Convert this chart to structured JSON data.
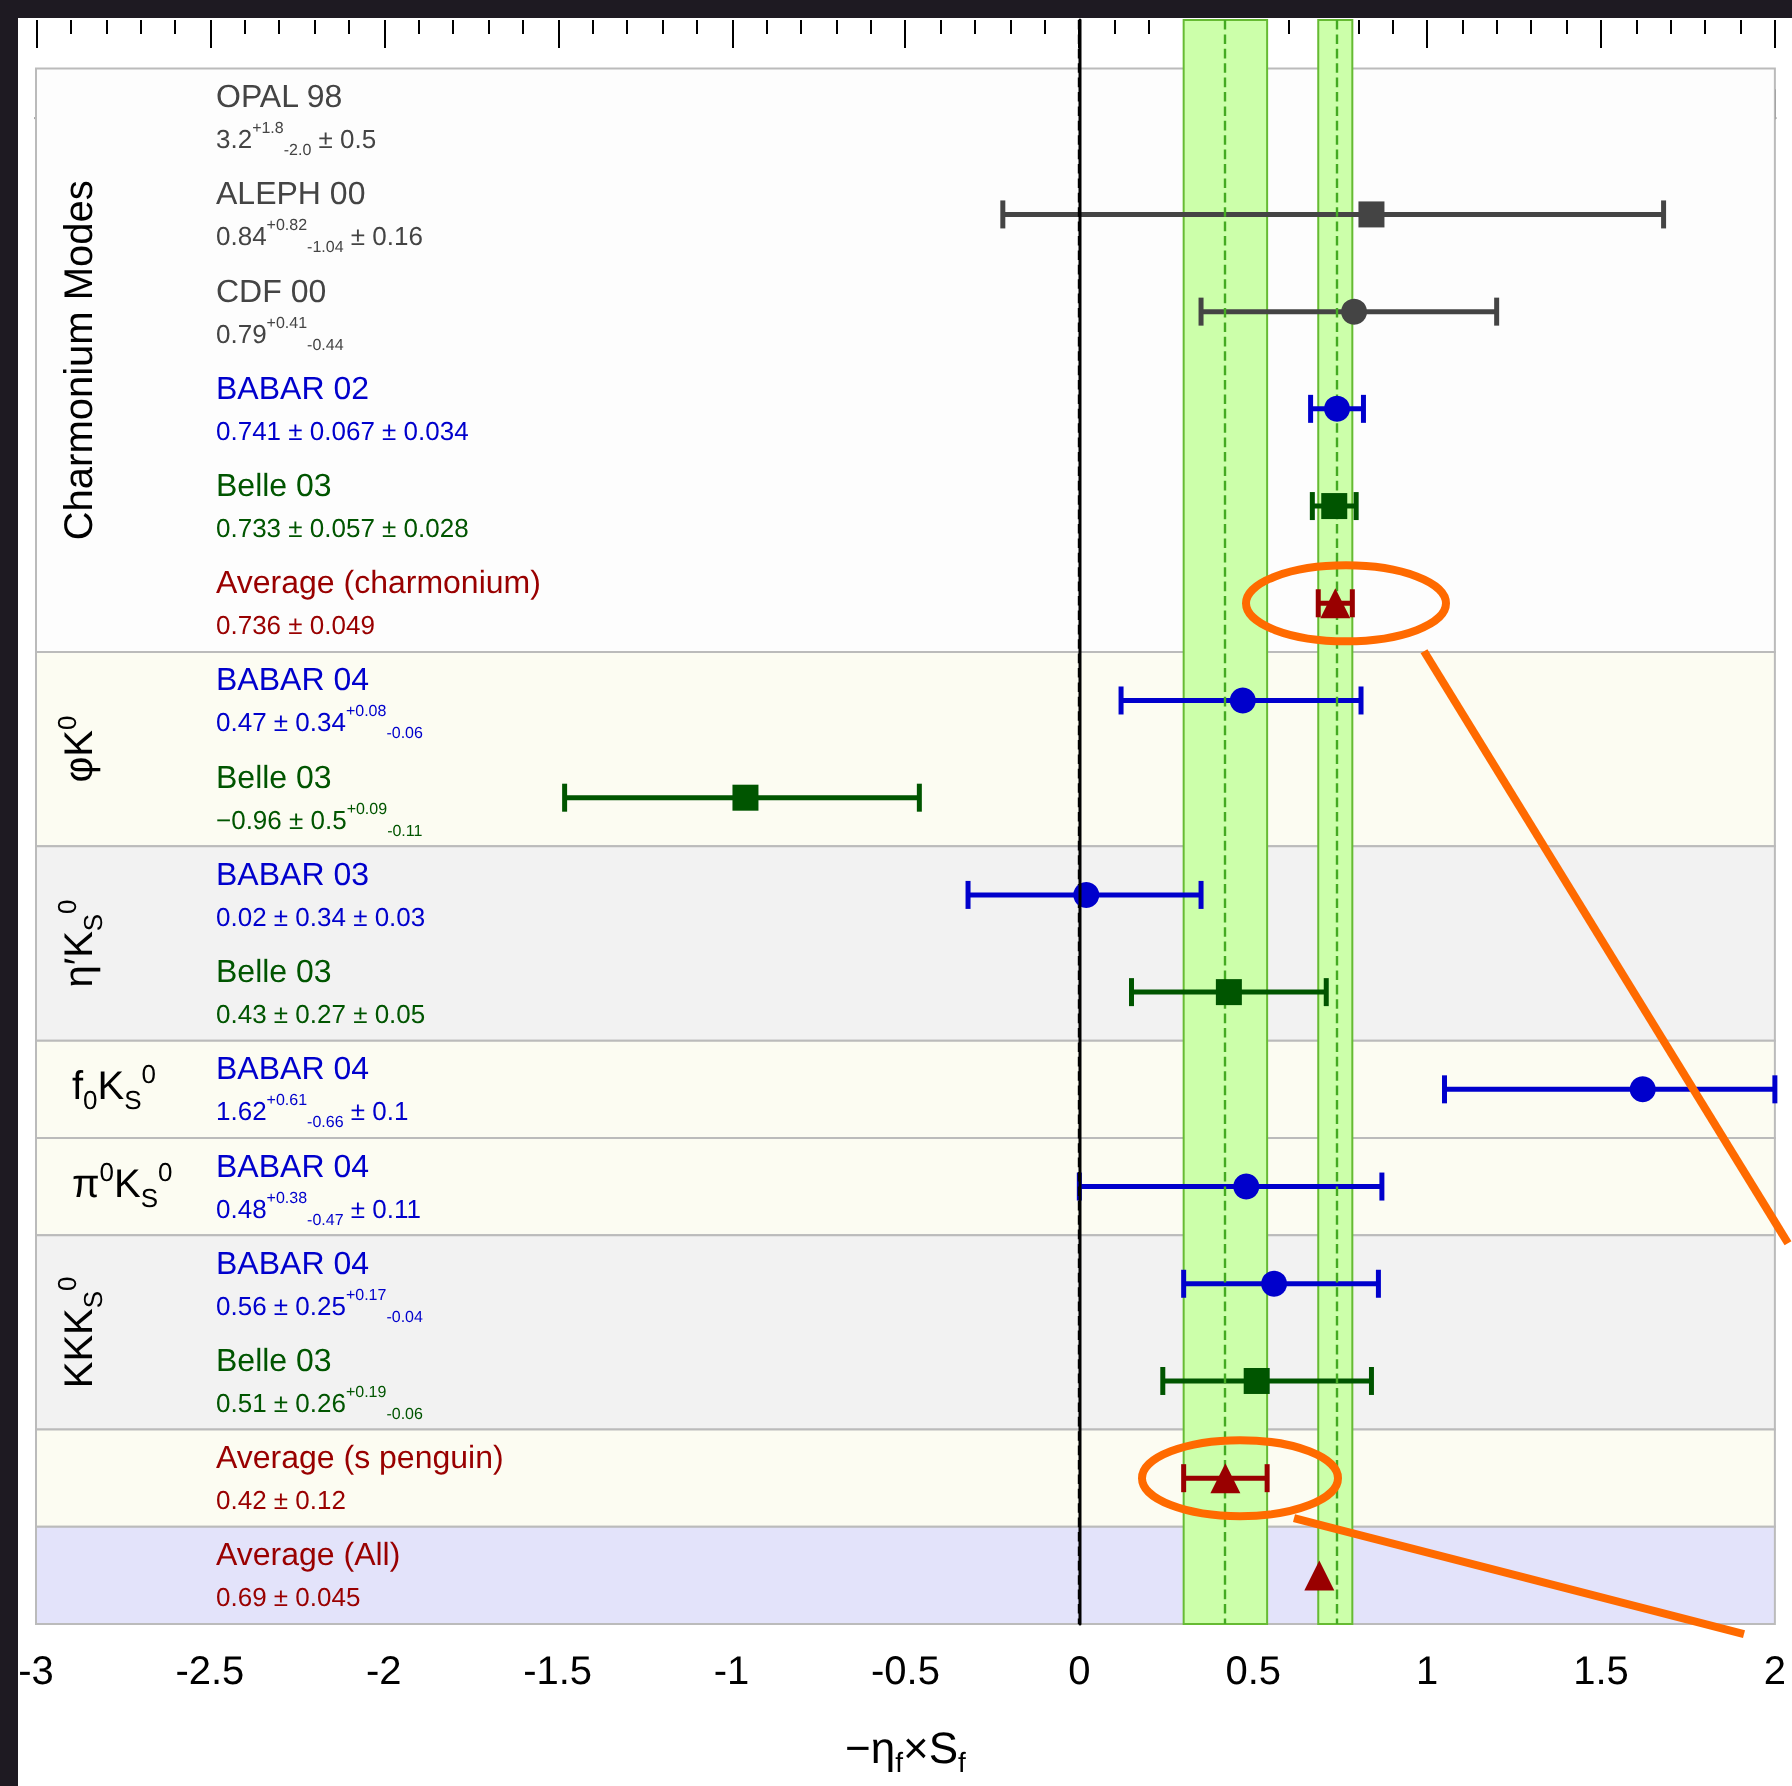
{
  "chart_data": {
    "type": "scatter",
    "orientation": "horizontal",
    "xlabel": "−η$_{f}$×S$_{f}$",
    "categories": [
      "OPAL 98\n3.2$^{+1.8}$$_{-2.0}$ ± 0.5",
      "ALEPH 00\n0.84$^{+0.82}$$_{-1.04}$ ± 0.16",
      "CDF 00\n0.79$^{+0.41}$$_{-0.44}$",
      "BABAR 02\n0.741 ± 0.067 ± 0.034",
      "Belle 03\n0.733 ± 0.057 ± 0.028",
      "Average (charmonium)\n0.736 ± 0.049",
      "BABAR 04\n0.47 ± 0.34$^{+0.08}$$_{-0.06}$",
      "Belle 03\n−0.96 ± 0.5$^{+0.09}$$_{-0.11}$",
      "BABAR 03\n0.02 ± 0.34 ± 0.03",
      "Belle 03\n0.43 ± 0.27 ± 0.05",
      "BABAR 04\n1.62$^{+0.61}$$_{-0.66}$ ± 0.1",
      "BABAR 04\n0.48$^{+0.38}$$_{-0.47}$ ± 0.11",
      "BABAR 04\n0.56 ± 0.25$^{+0.17}$$_{-0.04}$",
      "Belle 03\n0.51 ± 0.26$^{+0.19}$$_{-0.06}$",
      "Average (s penguin)\n0.42 ± 0.12",
      "Average (All)\n0.69 ± 0.045"
    ],
    "series": [
      {
        "color": "#444444",
        "marker": "square",
        "values": [
          null,
          0.84,
          null,
          null,
          null,
          null,
          null,
          null,
          null,
          null,
          null,
          null,
          null,
          null,
          null,
          null
        ],
        "errors": [
          null,
          [
            -0.22,
            1.68
          ],
          null,
          null,
          null,
          null,
          null,
          null,
          null,
          null,
          null,
          null,
          null,
          null,
          null,
          null
        ]
      },
      {
        "color": "#444444",
        "marker": "circle",
        "values": [
          null,
          null,
          0.79,
          null,
          null,
          null,
          null,
          null,
          null,
          null,
          null,
          null,
          null,
          null,
          null,
          null
        ],
        "errors": [
          null,
          null,
          [
            0.35,
            1.2
          ],
          null,
          null,
          null,
          null,
          null,
          null,
          null,
          null,
          null,
          null,
          null,
          null,
          null
        ]
      },
      {
        "color": "#0000cc",
        "marker": "circle",
        "values": [
          null,
          null,
          null,
          0.741,
          null,
          null,
          0.47,
          null,
          0.02,
          null,
          1.62,
          0.48,
          0.56,
          null,
          null,
          null
        ],
        "errors": [
          null,
          null,
          null,
          0.076,
          null,
          null,
          [
            0.12,
            0.81
          ],
          null,
          [
            -0.32,
            0.35
          ],
          null,
          [
            1.05,
            2
          ],
          [
            0,
            0.87
          ],
          [
            0.3,
            0.86
          ],
          null,
          null,
          null
        ]
      },
      {
        "color": "#005500",
        "marker": "square",
        "values": [
          null,
          null,
          null,
          null,
          0.733,
          null,
          null,
          -0.96,
          null,
          0.43,
          null,
          null,
          null,
          0.51,
          null,
          null
        ],
        "errors": [
          null,
          null,
          null,
          null,
          0.063,
          null,
          null,
          [
            -1.48,
            -0.46
          ],
          null,
          [
            0.15,
            0.71
          ],
          null,
          null,
          null,
          [
            0.24,
            0.84
          ],
          null,
          null
        ]
      },
      {
        "color": "#990000",
        "marker": "triangle",
        "values": [
          null,
          null,
          null,
          null,
          null,
          0.736,
          null,
          null,
          null,
          null,
          null,
          null,
          null,
          null,
          0.42,
          0.69
        ],
        "errors": [
          null,
          null,
          null,
          null,
          null,
          0.049,
          null,
          null,
          null,
          null,
          null,
          null,
          null,
          null,
          0.12,
          null
        ]
      }
    ],
    "xlim": [
      -3,
      2
    ],
    "xticks": [
      -3,
      -2.5,
      -2,
      -1.5,
      -1,
      -0.5,
      0,
      0.5,
      1,
      1.5,
      2
    ],
    "bands": [
      {
        "axis": "y",
        "from": "OPAL 98\n3.2$^{+1.8}$$_{-2.0}$ ± 0.5",
        "to": "Average (charmonium)\n0.736 ± 0.049",
        "label": "Charmonium Modes",
        "color": "#fdfdfd"
      },
      {
        "axis": "y",
        "from": "BABAR 04\n0.47 ± 0.34$^{+0.08}$$_{-0.06}$",
        "to": "Belle 03\n−0.96 ± 0.5$^{+0.09}$$_{-0.11}$",
        "label": "φK$^{0}$",
        "color": "#fcfcf2"
      },
      {
        "axis": "y",
        "from": "BABAR 03\n0.02 ± 0.34 ± 0.03",
        "to": "Belle 03\n0.43 ± 0.27 ± 0.05",
        "label": "η′K$_{S}$$^{0}$",
        "color": "#f2f2f2"
      },
      {
        "axis": "y",
        "from": "BABAR 04\n1.62$^{+0.61}$$_{-0.66}$ ± 0.1",
        "to": "BABAR 04\n1.62$^{+0.61}$$_{-0.66}$ ± 0.1",
        "label": "f$_{0}$K$_{S}$$^{0}$",
        "color": "#fcfcf2"
      },
      {
        "axis": "y",
        "from": "BABAR 04\n0.48$^{+0.38}$$_{-0.47}$ ± 0.11",
        "to": "BABAR 04\n0.48$^{+0.38}$$_{-0.47}$ ± 0.11",
        "label": "π$^{0}$K$_{S}$$^{0}$",
        "color": "#fcfcf2"
      },
      {
        "axis": "y",
        "from": "BABAR 04\n0.56 ± 0.25$^{+0.17}$$_{-0.04}$",
        "to": "Belle 03\n0.51 ± 0.26$^{+0.19}$$_{-0.06}$",
        "label": "KKK$_{S}$$^{0}$",
        "color": "#f2f2f2"
      },
      {
        "axis": "y",
        "from": "Average (s penguin)\n0.42 ± 0.12",
        "to": "Average (s penguin)\n0.42 ± 0.12",
        "color": "#fcfcf2"
      },
      {
        "axis": "y",
        "from": "Average (All)\n0.69 ± 0.045",
        "to": "Average (All)\n0.69 ± 0.045",
        "color": "#e3e3fa"
      },
      {
        "axis": "x",
        "from": 0.3,
        "to": 0.54,
        "color": "#ccffaa"
      },
      {
        "axis": "x",
        "from": 0.687,
        "to": 0.785,
        "color": "#ccffaa"
      }
    ],
    "ref_lines": [
      {
        "axis": "x",
        "value": 0,
        "color": "#000000",
        "line_style": "dashed"
      },
      {
        "axis": "x",
        "value": 0.42,
        "color": "#44aa22",
        "line_style": "dashed"
      },
      {
        "axis": "x",
        "value": 0.736,
        "color": "#44aa22",
        "line_style": "dashed"
      }
    ]
  }
}
